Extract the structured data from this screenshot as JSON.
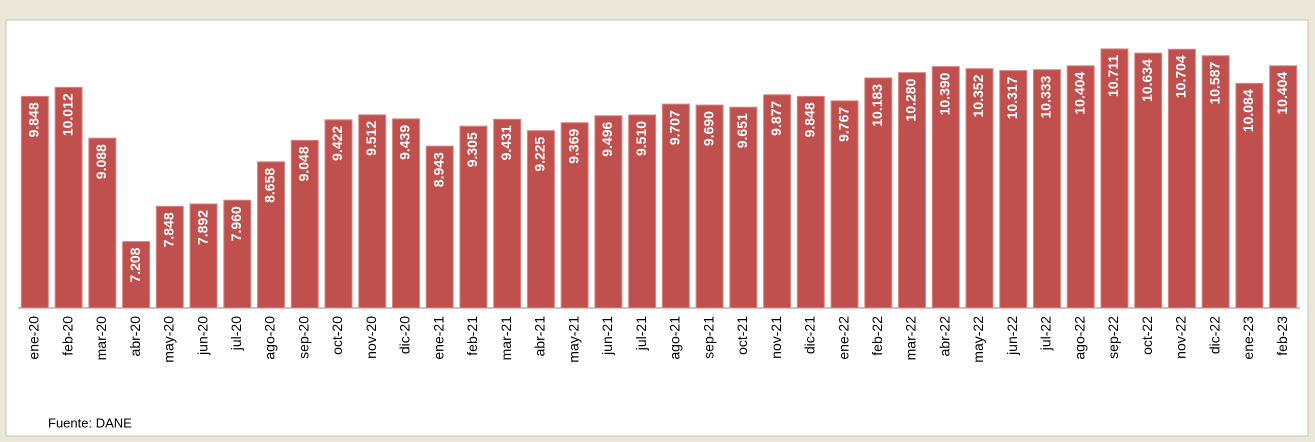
{
  "chart_data": {
    "type": "bar",
    "categories": [
      "ene-20",
      "feb-20",
      "mar-20",
      "abr-20",
      "may-20",
      "jun-20",
      "jul-20",
      "ago-20",
      "sep-20",
      "oct-20",
      "nov-20",
      "dic-20",
      "ene-21",
      "feb-21",
      "mar-21",
      "abr-21",
      "may-21",
      "jun-21",
      "jul-21",
      "ago-21",
      "sep-21",
      "oct-21",
      "nov-21",
      "dic-21",
      "ene-22",
      "feb-22",
      "mar-22",
      "abr-22",
      "may-22",
      "jun-22",
      "jul-22",
      "ago-22",
      "sep-22",
      "oct-22",
      "nov-22",
      "dic-22",
      "ene-23",
      "feb-23"
    ],
    "values": [
      9.848,
      10.012,
      9.088,
      7.208,
      7.848,
      7.892,
      7.96,
      8.658,
      9.048,
      9.422,
      9.512,
      9.439,
      8.943,
      9.305,
      9.431,
      9.225,
      9.369,
      9.496,
      9.51,
      9.707,
      9.69,
      9.651,
      9.877,
      9.848,
      9.767,
      10.183,
      10.28,
      10.39,
      10.352,
      10.317,
      10.333,
      10.404,
      10.711,
      10.634,
      10.704,
      10.587,
      10.084,
      10.404
    ],
    "value_labels": [
      "9.848",
      "10.012",
      "9.088",
      "7.208",
      "7.848",
      "7.892",
      "7.960",
      "8.658",
      "9.048",
      "9.422",
      "9.512",
      "9.439",
      "8.943",
      "9.305",
      "9.431",
      "9.225",
      "9.369",
      "9.496",
      "9.510",
      "9.707",
      "9.690",
      "9.651",
      "9.877",
      "9.848",
      "9.767",
      "10.183",
      "10.280",
      "10.390",
      "10.352",
      "10.317",
      "10.333",
      "10.404",
      "10.711",
      "10.634",
      "10.704",
      "10.587",
      "10.084",
      "10.404"
    ],
    "color": "#c0504d",
    "ylim": [
      6,
      11.2
    ],
    "source": "Fuente: DANE"
  }
}
